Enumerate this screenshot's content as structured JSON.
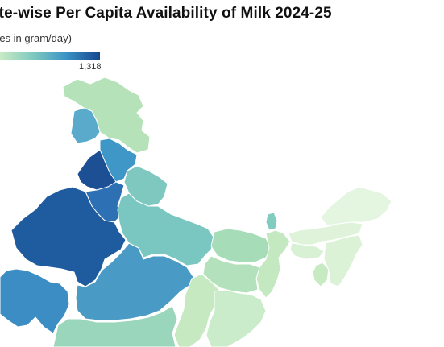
{
  "header": {
    "title": "ate-wise Per Capita Availability of Milk 2024-25",
    "subtitle": "res in gram/day)"
  },
  "legend": {
    "max_label": "1,318",
    "colors": [
      "#c9ebc4",
      "#7cc7c0",
      "#3d95c6",
      "#16468f"
    ]
  },
  "map": {
    "regions": [
      {
        "name": "Ladakh",
        "color": "#b5e2b8"
      },
      {
        "name": "Jammu & Kashmir",
        "color": "#5aaacb"
      },
      {
        "name": "Himachal Pradesh",
        "color": "#3f97c7"
      },
      {
        "name": "Punjab",
        "color": "#1d4f95"
      },
      {
        "name": "Haryana",
        "color": "#2d70b3"
      },
      {
        "name": "Uttarakhand",
        "color": "#7ec8c0"
      },
      {
        "name": "Rajasthan",
        "color": "#1f5c9f"
      },
      {
        "name": "Gujarat",
        "color": "#3b8dc3"
      },
      {
        "name": "Uttar Pradesh",
        "color": "#7ac6c0"
      },
      {
        "name": "Madhya Pradesh",
        "color": "#4a9ac6"
      },
      {
        "name": "Bihar",
        "color": "#a6dcb8"
      },
      {
        "name": "Sikkim",
        "color": "#82cbbf"
      },
      {
        "name": "Jharkhand",
        "color": "#c4e8c0"
      },
      {
        "name": "West Bengal",
        "color": "#b3e1bb"
      },
      {
        "name": "Chhattisgarh",
        "color": "#c6e9c1"
      },
      {
        "name": "Odisha",
        "color": "#cbeccb"
      },
      {
        "name": "Maharashtra",
        "color": "#9ad6bb"
      },
      {
        "name": "Assam",
        "color": "#def3da"
      },
      {
        "name": "Arunachal Pradesh",
        "color": "#e4f5e0"
      },
      {
        "name": "Meghalaya",
        "color": "#d8f0d4"
      },
      {
        "name": "Tripura",
        "color": "#c8eac3"
      },
      {
        "name": "Northeast Hills",
        "color": "#dcf2d7"
      }
    ]
  }
}
